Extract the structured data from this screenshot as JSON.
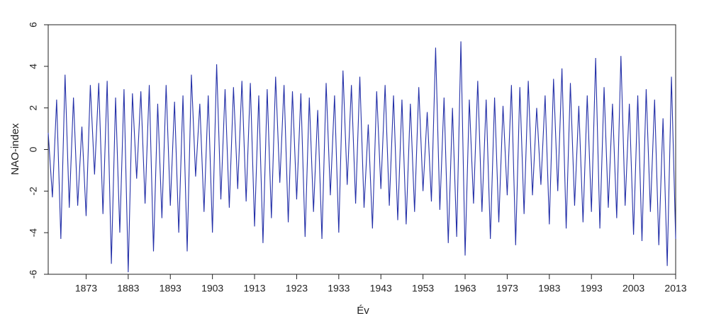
{
  "chart_data": {
    "type": "line",
    "xlabel": "Év",
    "ylabel": "NAO-index",
    "x": [
      1864,
      1865,
      1866,
      1867,
      1868,
      1869,
      1870,
      1871,
      1872,
      1873,
      1874,
      1875,
      1876,
      1877,
      1878,
      1879,
      1880,
      1881,
      1882,
      1883,
      1884,
      1885,
      1886,
      1887,
      1888,
      1889,
      1890,
      1891,
      1892,
      1893,
      1894,
      1895,
      1896,
      1897,
      1898,
      1899,
      1900,
      1901,
      1902,
      1903,
      1904,
      1905,
      1906,
      1907,
      1908,
      1909,
      1910,
      1911,
      1912,
      1913,
      1914,
      1915,
      1916,
      1917,
      1918,
      1919,
      1920,
      1921,
      1922,
      1923,
      1924,
      1925,
      1926,
      1927,
      1928,
      1929,
      1930,
      1931,
      1932,
      1933,
      1934,
      1935,
      1936,
      1937,
      1938,
      1939,
      1940,
      1941,
      1942,
      1943,
      1944,
      1945,
      1946,
      1947,
      1948,
      1949,
      1950,
      1951,
      1952,
      1953,
      1954,
      1955,
      1956,
      1957,
      1958,
      1959,
      1960,
      1961,
      1962,
      1963,
      1964,
      1965,
      1966,
      1967,
      1968,
      1969,
      1970,
      1971,
      1972,
      1973,
      1974,
      1975,
      1976,
      1977,
      1978,
      1979,
      1980,
      1981,
      1982,
      1983,
      1984,
      1985,
      1986,
      1987,
      1988,
      1989,
      1990,
      1991,
      1992,
      1993,
      1994,
      1995,
      1996,
      1997,
      1998,
      1999,
      2000,
      2001,
      2002,
      2003,
      2004,
      2005,
      2006,
      2007,
      2008,
      2009,
      2010,
      2011,
      2012,
      2013
    ],
    "series": [
      {
        "name": "NAO-index",
        "color": "#2430a8",
        "values": [
          0.8,
          -2.3,
          2.4,
          -4.3,
          3.6,
          -2.8,
          2.5,
          -2.7,
          1.1,
          -3.2,
          3.1,
          -1.2,
          3.2,
          -3.1,
          3.3,
          -5.5,
          2.5,
          -4.0,
          2.9,
          -5.9,
          2.7,
          -1.4,
          2.8,
          -2.6,
          3.1,
          -4.9,
          2.2,
          -3.3,
          3.1,
          -2.7,
          2.3,
          -4.0,
          2.6,
          -4.9,
          3.6,
          -1.3,
          2.2,
          -3.0,
          2.6,
          -4.0,
          4.1,
          -2.4,
          2.9,
          -2.8,
          3.0,
          -1.9,
          3.3,
          -2.5,
          3.2,
          -3.7,
          2.6,
          -4.5,
          2.9,
          -3.3,
          3.5,
          -1.6,
          3.1,
          -3.5,
          2.8,
          -2.4,
          2.7,
          -4.2,
          2.5,
          -3.0,
          1.9,
          -4.3,
          3.2,
          -2.2,
          2.6,
          -4.0,
          3.8,
          -1.7,
          3.1,
          -2.6,
          3.5,
          -2.8,
          1.2,
          -3.8,
          2.8,
          -1.9,
          3.1,
          -2.7,
          2.6,
          -3.4,
          2.4,
          -3.6,
          2.2,
          -3.0,
          3.0,
          -2.0,
          1.8,
          -2.5,
          4.9,
          -2.9,
          2.5,
          -4.5,
          2.0,
          -4.2,
          5.2,
          -5.1,
          2.4,
          -2.6,
          3.3,
          -3.0,
          2.4,
          -4.3,
          2.5,
          -3.5,
          2.1,
          -2.2,
          3.1,
          -4.6,
          3.0,
          -3.1,
          3.3,
          -2.2,
          2.0,
          -1.7,
          2.6,
          -3.6,
          3.4,
          -2.0,
          3.9,
          -3.8,
          3.2,
          -2.7,
          2.1,
          -3.5,
          2.6,
          -3.0,
          4.4,
          -3.8,
          3.0,
          -2.8,
          2.2,
          -3.3,
          4.5,
          -2.7,
          2.2,
          -4.1,
          2.6,
          -4.4,
          2.9,
          -3.0,
          2.4,
          -4.6,
          1.5,
          -5.6,
          3.5,
          -4.3
        ]
      }
    ],
    "xlim": [
      1864,
      2013
    ],
    "xticks": [
      1873,
      1883,
      1893,
      1903,
      1913,
      1923,
      1933,
      1943,
      1953,
      1963,
      1973,
      1983,
      1993,
      2003,
      2013
    ],
    "ylim": [
      -6,
      6
    ],
    "yticks": [
      -6,
      -4,
      -2,
      0,
      2,
      4,
      6
    ],
    "grid": false
  }
}
